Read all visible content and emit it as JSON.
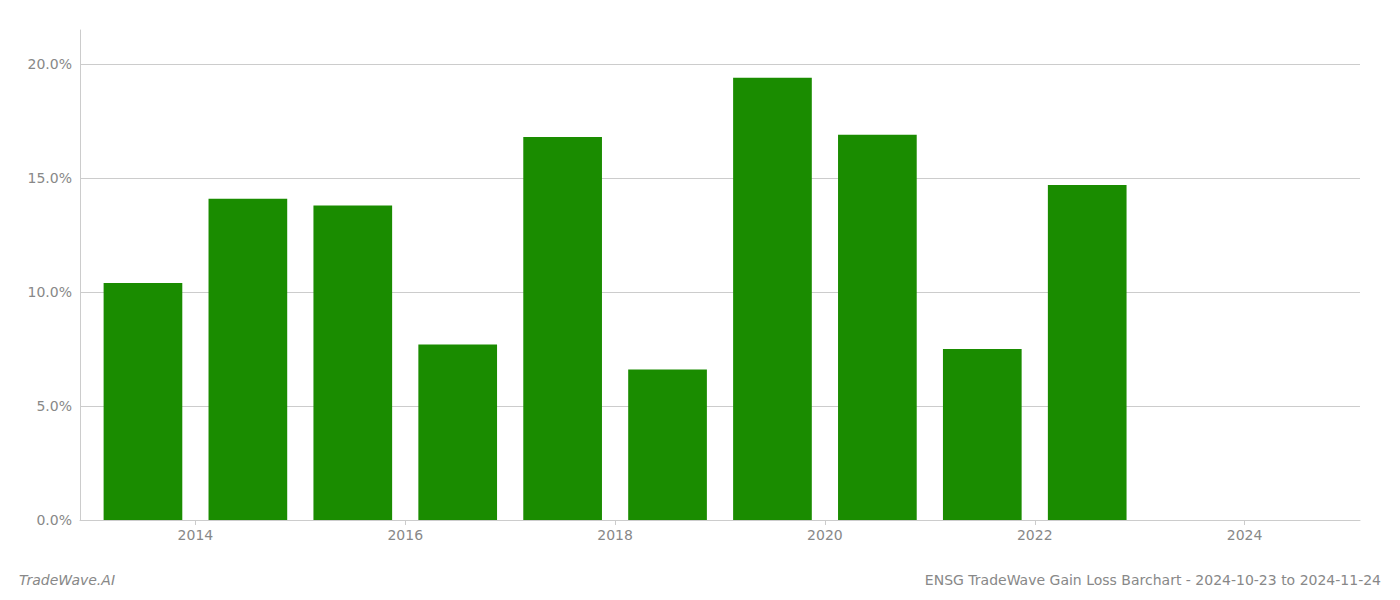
{
  "chart_data": {
    "type": "bar",
    "x": [
      2013,
      2014,
      2015,
      2016,
      2017,
      2018,
      2019,
      2020,
      2021,
      2022,
      2023
    ],
    "values": [
      0.104,
      0.141,
      0.138,
      0.077,
      0.168,
      0.066,
      0.194,
      0.169,
      0.075,
      0.147,
      0.0
    ],
    "color": "#1a8c00",
    "xlim": [
      2012.4,
      2024.6
    ],
    "xticks": [
      {
        "value": 2013.5,
        "label": "2014"
      },
      {
        "value": 2015.5,
        "label": "2016"
      },
      {
        "value": 2017.5,
        "label": "2018"
      },
      {
        "value": 2019.5,
        "label": "2020"
      },
      {
        "value": 2021.5,
        "label": "2022"
      },
      {
        "value": 2023.5,
        "label": "2024"
      }
    ],
    "ylim": [
      0,
      0.215
    ],
    "yticks": [
      {
        "value": 0.0,
        "label": "0.0%"
      },
      {
        "value": 0.05,
        "label": "5.0%"
      },
      {
        "value": 0.1,
        "label": "10.0%"
      },
      {
        "value": 0.15,
        "label": "15.0%"
      },
      {
        "value": 0.2,
        "label": "20.0%"
      }
    ],
    "grid": true,
    "annotations": [
      "TradeWave.AI",
      "ENSG TradeWave Gain Loss Barchart - 2024-10-23 to 2024-11-24"
    ]
  }
}
